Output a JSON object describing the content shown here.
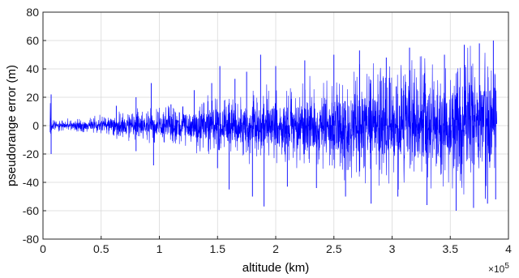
{
  "chart_data": {
    "type": "line",
    "title": "",
    "xlabel": "altitude (km)",
    "ylabel": "pseudorange error (m)",
    "x_exponent_label": "×10",
    "x_exponent": "5",
    "x_multiplier": 100000,
    "xlim": [
      0,
      4
    ],
    "ylim": [
      -80,
      80
    ],
    "grid": true,
    "xticks": [
      0,
      0.5,
      1,
      1.5,
      2,
      2.5,
      3,
      3.5,
      4
    ],
    "xtick_labels": [
      "0",
      "0.5",
      "1",
      "1.5",
      "2",
      "2.5",
      "3",
      "3.5",
      "4"
    ],
    "yticks": [
      -80,
      -60,
      -40,
      -20,
      0,
      20,
      40,
      60,
      80
    ],
    "ytick_labels": [
      "-80",
      "-60",
      "-40",
      "-20",
      "0",
      "20",
      "40",
      "60",
      "80"
    ],
    "series": [
      {
        "color": "#0000ff",
        "x_range": [
          0.06,
          3.9
        ],
        "envelope": {
          "x": [
            0.06,
            0.08,
            0.2,
            0.4,
            0.6,
            0.8,
            1.0,
            1.2,
            1.4,
            1.6,
            1.8,
            2.0,
            2.2,
            2.4,
            2.6,
            2.8,
            3.0,
            3.2,
            3.4,
            3.6,
            3.8,
            3.9
          ],
          "upper": [
            22,
            4,
            4,
            5,
            8,
            10,
            12,
            14,
            17,
            20,
            22,
            24,
            27,
            30,
            33,
            36,
            38,
            40,
            42,
            45,
            47,
            48
          ],
          "lower": [
            -20,
            -4,
            -4,
            -5,
            -7,
            -10,
            -12,
            -14,
            -17,
            -20,
            -22,
            -24,
            -26,
            -29,
            -32,
            -34,
            -36,
            -38,
            -40,
            -42,
            -44,
            -45
          ]
        },
        "spikes": [
          {
            "x": 0.07,
            "y": 22
          },
          {
            "x": 0.07,
            "y": -20
          },
          {
            "x": 0.63,
            "y": 14
          },
          {
            "x": 0.8,
            "y": 20
          },
          {
            "x": 0.8,
            "y": -18
          },
          {
            "x": 0.93,
            "y": 30
          },
          {
            "x": 0.95,
            "y": -28
          },
          {
            "x": 1.1,
            "y": 15
          },
          {
            "x": 1.3,
            "y": 25
          },
          {
            "x": 1.45,
            "y": 30
          },
          {
            "x": 1.5,
            "y": -30
          },
          {
            "x": 1.52,
            "y": 42
          },
          {
            "x": 1.6,
            "y": -45
          },
          {
            "x": 1.65,
            "y": 33
          },
          {
            "x": 1.75,
            "y": 38
          },
          {
            "x": 1.8,
            "y": -50
          },
          {
            "x": 1.87,
            "y": 50
          },
          {
            "x": 1.9,
            "y": -57
          },
          {
            "x": 2.0,
            "y": 42
          },
          {
            "x": 2.1,
            "y": -43
          },
          {
            "x": 2.25,
            "y": 46
          },
          {
            "x": 2.35,
            "y": -44
          },
          {
            "x": 2.5,
            "y": 50
          },
          {
            "x": 2.6,
            "y": -50
          },
          {
            "x": 2.72,
            "y": 53
          },
          {
            "x": 2.82,
            "y": -55
          },
          {
            "x": 2.95,
            "y": 48
          },
          {
            "x": 3.05,
            "y": -50
          },
          {
            "x": 3.15,
            "y": 55
          },
          {
            "x": 3.3,
            "y": -56
          },
          {
            "x": 3.45,
            "y": 50
          },
          {
            "x": 3.55,
            "y": -60
          },
          {
            "x": 3.62,
            "y": 57
          },
          {
            "x": 3.7,
            "y": -58
          },
          {
            "x": 3.75,
            "y": 58
          },
          {
            "x": 3.82,
            "y": -55
          },
          {
            "x": 3.87,
            "y": 60
          },
          {
            "x": 3.89,
            "y": -52
          }
        ]
      }
    ]
  }
}
